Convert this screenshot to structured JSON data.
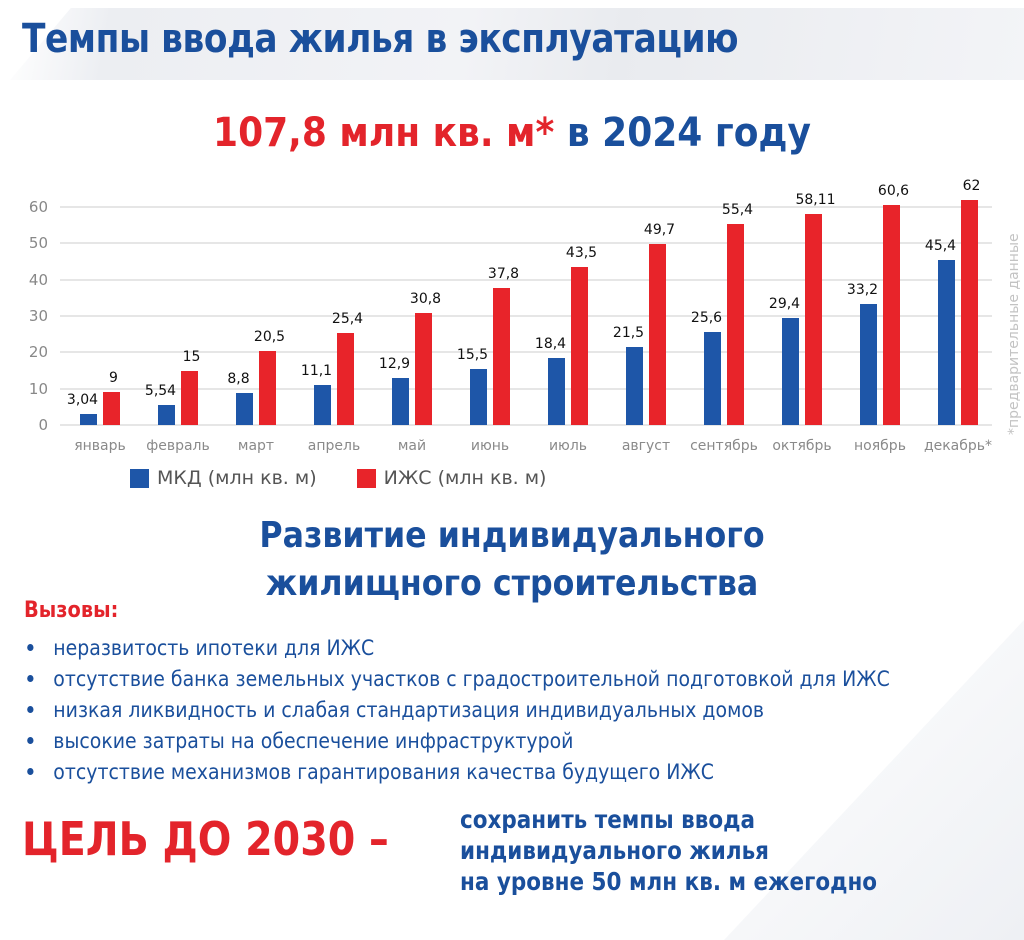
{
  "header": {
    "title": "Темпы ввода жилья в эксплуатацию",
    "subtitle_red": "107,8 млн кв. м*",
    "subtitle_blue": "в 2024 году"
  },
  "chart_data": {
    "type": "bar",
    "title": "107,8 млн кв. м* в 2024 году",
    "xlabel": "",
    "ylabel": "",
    "ylim": [
      0,
      60
    ],
    "yticks": [
      "0",
      "10",
      "20",
      "30",
      "40",
      "50",
      "60"
    ],
    "grid": true,
    "legend_position": "bottom",
    "categories": [
      "январь",
      "февраль",
      "март",
      "апрель",
      "май",
      "июнь",
      "июль",
      "август",
      "сентябрь",
      "октябрь",
      "ноябрь",
      "декабрь*"
    ],
    "series": [
      {
        "name": "МКД (млн кв. м)",
        "color": "#1e56a8",
        "values": [
          3.04,
          5.54,
          8.8,
          11.1,
          12.9,
          15.5,
          18.4,
          21.5,
          25.6,
          29.4,
          33.2,
          45.4
        ],
        "labels": [
          "3,04",
          "5,54",
          "8,8",
          "11,1",
          "12,9",
          "15,5",
          "18,4",
          "21,5",
          "25,6",
          "29,4",
          "33,2",
          "45,4"
        ]
      },
      {
        "name": "ИЖС (млн кв. м)",
        "color": "#e8242a",
        "values": [
          9,
          15,
          20.5,
          25.4,
          30.8,
          37.8,
          43.5,
          49.7,
          55.4,
          58.11,
          60.6,
          62
        ],
        "labels": [
          "9",
          "15",
          "20,5",
          "25,4",
          "30,8",
          "37,8",
          "43,5",
          "49,7",
          "55,4",
          "58,11",
          "60,6",
          "62"
        ]
      }
    ],
    "annotations": [
      "*предварительные данные"
    ]
  },
  "side_note": "*предварительные данные",
  "section": {
    "title_line1": "Развитие индивидуального",
    "title_line2": "жилищного строительства",
    "challenges_heading": "Вызовы:",
    "challenges": [
      "неразвитость ипотеки для ИЖС",
      "отсутствие банка земельных участков с градостроительной подготовкой для ИЖС",
      "низкая ликвидность и слабая стандартизация индивидуальных домов",
      "высокие затраты на обеспечение инфраструктурой",
      "отсутствие механизмов гарантирования качества будущего ИЖС"
    ]
  },
  "goal": {
    "label": "ЦЕЛЬ ДО 2030 –",
    "line1": "сохранить темпы ввода",
    "line2": "индивидуального жилья",
    "line3": "на уровне 50 млн кв. м ежегодно"
  },
  "colors": {
    "brand_blue": "#1a4f9c",
    "brand_red": "#e3242b",
    "bar_blue": "#1e56a8",
    "bar_red": "#e8242a"
  }
}
